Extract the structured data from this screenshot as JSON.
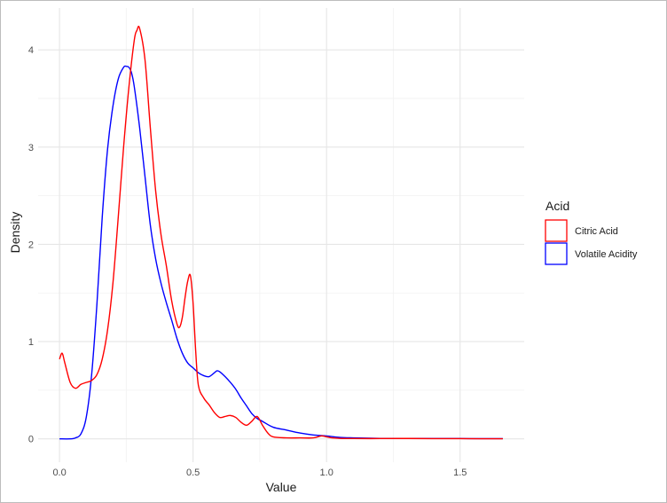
{
  "chart_data": {
    "type": "line",
    "title": "",
    "xlabel": "Value",
    "ylabel": "Density",
    "xlim": [
      -0.08,
      1.74
    ],
    "ylim": [
      -0.24,
      4.43
    ],
    "x_ticks": [
      0.0,
      0.5,
      1.0,
      1.5
    ],
    "x_tick_labels": [
      "0.0",
      "0.5",
      "1.0",
      "1.5"
    ],
    "y_ticks": [
      0,
      1,
      2,
      3,
      4
    ],
    "y_tick_labels": [
      "0",
      "1",
      "2",
      "3",
      "4"
    ],
    "grid": true,
    "legend_position": "right",
    "legend_title": "Acid",
    "series": [
      {
        "name": "Citric Acid",
        "color": "#ff0000",
        "x": [
          0.0,
          0.01,
          0.02,
          0.04,
          0.06,
          0.08,
          0.1,
          0.12,
          0.14,
          0.16,
          0.18,
          0.2,
          0.22,
          0.24,
          0.26,
          0.28,
          0.29,
          0.3,
          0.32,
          0.34,
          0.36,
          0.38,
          0.4,
          0.42,
          0.44,
          0.45,
          0.46,
          0.47,
          0.48,
          0.49,
          0.5,
          0.51,
          0.52,
          0.54,
          0.56,
          0.58,
          0.6,
          0.62,
          0.64,
          0.66,
          0.68,
          0.7,
          0.72,
          0.74,
          0.76,
          0.78,
          0.8,
          0.85,
          0.9,
          0.95,
          0.98,
          1.0,
          1.02,
          1.05,
          1.1,
          1.2,
          1.3,
          1.4,
          1.5,
          1.66
        ],
        "values": [
          0.82,
          0.88,
          0.78,
          0.58,
          0.52,
          0.56,
          0.58,
          0.6,
          0.66,
          0.82,
          1.12,
          1.6,
          2.28,
          3.0,
          3.62,
          4.1,
          4.2,
          4.22,
          3.9,
          3.2,
          2.55,
          2.1,
          1.78,
          1.42,
          1.18,
          1.15,
          1.25,
          1.45,
          1.62,
          1.68,
          1.4,
          0.9,
          0.55,
          0.42,
          0.35,
          0.27,
          0.22,
          0.23,
          0.24,
          0.22,
          0.17,
          0.14,
          0.18,
          0.23,
          0.14,
          0.06,
          0.02,
          0.01,
          0.01,
          0.01,
          0.03,
          0.02,
          0.01,
          0.005,
          0.003,
          0.003,
          0.004,
          0.002,
          0.002,
          0.001
        ]
      },
      {
        "name": "Volatile Acidity",
        "color": "#0000ff",
        "x": [
          0.0,
          0.04,
          0.06,
          0.08,
          0.1,
          0.12,
          0.14,
          0.16,
          0.18,
          0.2,
          0.22,
          0.24,
          0.25,
          0.26,
          0.27,
          0.28,
          0.3,
          0.32,
          0.34,
          0.36,
          0.38,
          0.4,
          0.42,
          0.44,
          0.46,
          0.48,
          0.5,
          0.52,
          0.54,
          0.56,
          0.58,
          0.59,
          0.6,
          0.62,
          0.64,
          0.66,
          0.68,
          0.7,
          0.72,
          0.74,
          0.76,
          0.8,
          0.85,
          0.9,
          0.95,
          1.0,
          1.05,
          1.1,
          1.2,
          1.3,
          1.4,
          1.5,
          1.6,
          1.66
        ],
        "values": [
          0.0,
          0.0,
          0.01,
          0.05,
          0.22,
          0.65,
          1.38,
          2.28,
          2.98,
          3.42,
          3.7,
          3.82,
          3.83,
          3.82,
          3.76,
          3.62,
          3.2,
          2.7,
          2.2,
          1.85,
          1.6,
          1.4,
          1.22,
          1.03,
          0.88,
          0.78,
          0.73,
          0.68,
          0.65,
          0.64,
          0.68,
          0.7,
          0.69,
          0.64,
          0.58,
          0.51,
          0.42,
          0.34,
          0.26,
          0.21,
          0.18,
          0.12,
          0.09,
          0.06,
          0.04,
          0.03,
          0.015,
          0.01,
          0.005,
          0.004,
          0.003,
          0.003,
          0.002,
          0.002
        ]
      }
    ]
  }
}
